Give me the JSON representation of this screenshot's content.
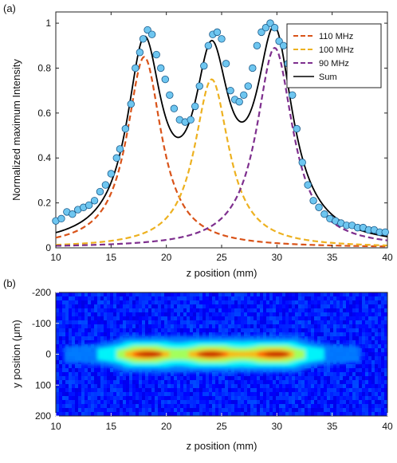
{
  "chart_data": [
    {
      "type": "line",
      "panel_label": "(a)",
      "xlabel": "z position (mm)",
      "ylabel": "Normalized maximum Intensity",
      "xlim": [
        10,
        40
      ],
      "ylim": [
        0,
        1.05
      ],
      "x_ticks": [
        "10",
        "15",
        "20",
        "25",
        "30",
        "35",
        "40"
      ],
      "y_ticks": [
        "0",
        "0.2",
        "0.4",
        "0.6",
        "0.8",
        "1"
      ],
      "grid": false,
      "legend_position": "top-right",
      "series": [
        {
          "name": "110 MHz",
          "style": "dashed",
          "color": "#d95319",
          "center": 18.0,
          "amplitude": 0.85,
          "hwhm": 1.9
        },
        {
          "name": "100 MHz",
          "style": "dashed",
          "color": "#edb120",
          "center": 24.1,
          "amplitude": 0.75,
          "hwhm": 1.9
        },
        {
          "name": "90 MHz",
          "style": "dashed",
          "color": "#7e2f8e",
          "center": 29.8,
          "amplitude": 0.89,
          "hwhm": 2.0
        },
        {
          "name": "Sum",
          "style": "solid",
          "color": "#000000"
        }
      ],
      "measured_points": {
        "color": "#6ec6f0",
        "x": [
          10.0,
          10.5,
          11.0,
          11.5,
          12.0,
          12.5,
          13.0,
          13.5,
          14.0,
          14.5,
          15.0,
          15.5,
          15.8,
          16.3,
          16.8,
          17.2,
          17.6,
          17.9,
          18.3,
          18.7,
          19.1,
          19.5,
          19.9,
          20.3,
          20.7,
          21.2,
          21.7,
          22.2,
          22.6,
          23.0,
          23.4,
          23.8,
          24.2,
          24.6,
          25.0,
          25.4,
          25.8,
          26.2,
          26.6,
          27.0,
          27.4,
          27.8,
          28.2,
          28.6,
          29.0,
          29.4,
          29.8,
          30.2,
          30.6,
          31.0,
          31.4,
          31.8,
          32.3,
          32.8,
          33.3,
          33.8,
          34.3,
          34.8,
          35.3,
          35.8,
          36.3,
          36.8,
          37.3,
          37.8,
          38.3,
          38.8,
          39.3,
          39.8
        ],
        "y": [
          0.12,
          0.13,
          0.16,
          0.15,
          0.17,
          0.18,
          0.19,
          0.21,
          0.25,
          0.28,
          0.33,
          0.4,
          0.44,
          0.53,
          0.64,
          0.8,
          0.87,
          0.93,
          0.97,
          0.95,
          0.86,
          0.8,
          0.75,
          0.68,
          0.62,
          0.57,
          0.56,
          0.57,
          0.63,
          0.72,
          0.81,
          0.9,
          0.95,
          0.96,
          0.93,
          0.82,
          0.7,
          0.66,
          0.65,
          0.68,
          0.72,
          0.8,
          0.9,
          0.96,
          0.98,
          1.0,
          0.98,
          0.92,
          0.9,
          0.82,
          0.68,
          0.53,
          0.38,
          0.28,
          0.21,
          0.18,
          0.15,
          0.13,
          0.12,
          0.11,
          0.1,
          0.1,
          0.09,
          0.09,
          0.08,
          0.08,
          0.07,
          0.07
        ]
      }
    },
    {
      "type": "heatmap",
      "panel_label": "(b)",
      "xlabel": "z position (mm)",
      "ylabel": "y position (μm)",
      "xlim": [
        10,
        40
      ],
      "ylim": [
        -200,
        200
      ],
      "x_ticks": [
        "10",
        "15",
        "20",
        "25",
        "30",
        "35",
        "40"
      ],
      "y_ticks": [
        "-200",
        "-100",
        "0",
        "100",
        "200"
      ],
      "colormap": "jet",
      "beam_center_y": 0,
      "hot_spots_z": [
        18.5,
        24.0,
        30.0
      ]
    }
  ]
}
